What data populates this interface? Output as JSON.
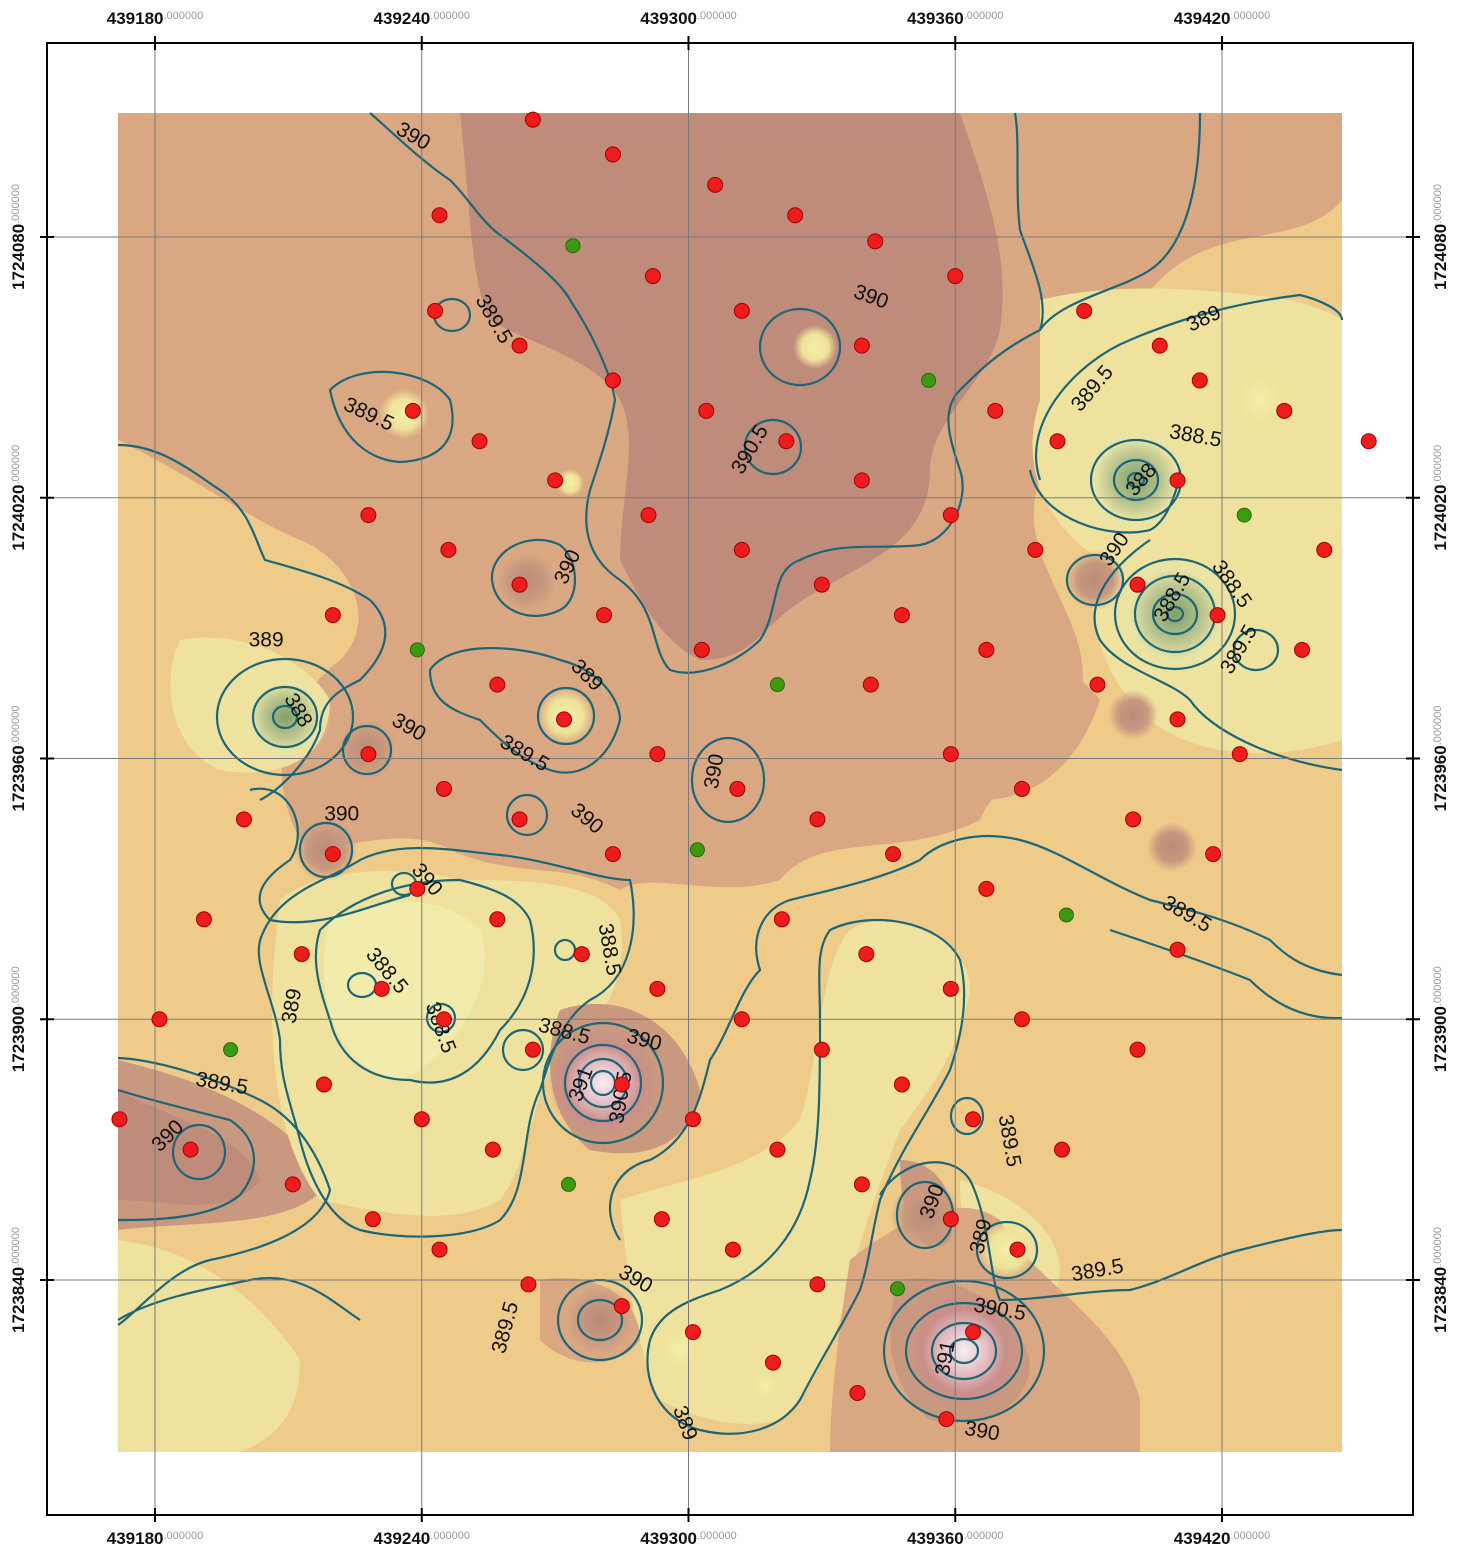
{
  "map": {
    "x_ticks": [
      {
        "main": "439180",
        "dec": ".000000",
        "value": 439180
      },
      {
        "main": "439240",
        "dec": ".000000",
        "value": 439240
      },
      {
        "main": "439300",
        "dec": ".000000",
        "value": 439300
      },
      {
        "main": "439360",
        "dec": ".000000",
        "value": 439360
      },
      {
        "main": "439420",
        "dec": ".000000",
        "value": 439420
      }
    ],
    "y_ticks": [
      {
        "main": "1724080",
        "dec": ".000000",
        "value": 1724080
      },
      {
        "main": "1724020",
        "dec": ".000000",
        "value": 1724020
      },
      {
        "main": "1723960",
        "dec": ".000000",
        "value": 1723960
      },
      {
        "main": "1723900",
        "dec": ".000000",
        "value": 1723900
      },
      {
        "main": "1723840",
        "dec": ".000000",
        "value": 1723840
      }
    ],
    "contour_labels": [
      {
        "text": "390",
        "x": 439238,
        "y": 1724103,
        "rot": 30
      },
      {
        "text": "389.5",
        "x": 439256,
        "y": 1724061,
        "rot": 60
      },
      {
        "text": "389.5",
        "x": 439228,
        "y": 1724039,
        "rot": 25
      },
      {
        "text": "390",
        "x": 439341,
        "y": 1724066,
        "rot": 20
      },
      {
        "text": "390.5",
        "x": 439314,
        "y": 1724031,
        "rot": -60
      },
      {
        "text": "389.5",
        "x": 439391,
        "y": 1724045,
        "rot": -50
      },
      {
        "text": "389",
        "x": 439416,
        "y": 1724061,
        "rot": -25
      },
      {
        "text": "388.5",
        "x": 439414,
        "y": 1724034,
        "rot": 10
      },
      {
        "text": "388",
        "x": 439402,
        "y": 1724024,
        "rot": -50
      },
      {
        "text": "390",
        "x": 439396,
        "y": 1724008,
        "rot": -55
      },
      {
        "text": "388.5",
        "x": 439409,
        "y": 1723997,
        "rot": -60
      },
      {
        "text": "388.5",
        "x": 439422,
        "y": 1724000,
        "rot": 55
      },
      {
        "text": "389.5",
        "x": 439424,
        "y": 1723985,
        "rot": -60
      },
      {
        "text": "390",
        "x": 439273,
        "y": 1724004,
        "rot": -65
      },
      {
        "text": "389",
        "x": 439205,
        "y": 1723987,
        "rot": 0
      },
      {
        "text": "388",
        "x": 439212,
        "y": 1723971,
        "rot": 60
      },
      {
        "text": "390",
        "x": 439237,
        "y": 1723967,
        "rot": 30
      },
      {
        "text": "389",
        "x": 439277,
        "y": 1723979,
        "rot": 45
      },
      {
        "text": "389.5",
        "x": 439263,
        "y": 1723961,
        "rot": 30
      },
      {
        "text": "390",
        "x": 439306,
        "y": 1723957,
        "rot": -80
      },
      {
        "text": "390",
        "x": 439277,
        "y": 1723946,
        "rot": 40
      },
      {
        "text": "390",
        "x": 439222,
        "y": 1723947,
        "rot": 0
      },
      {
        "text": "390",
        "x": 439241,
        "y": 1723932,
        "rot": 50
      },
      {
        "text": "389.5",
        "x": 439412,
        "y": 1723924,
        "rot": 30
      },
      {
        "text": "388.5",
        "x": 439282,
        "y": 1723916,
        "rot": 80
      },
      {
        "text": "388.5",
        "x": 439232,
        "y": 1723911,
        "rot": 50
      },
      {
        "text": "389",
        "x": 439211,
        "y": 1723903,
        "rot": -80
      },
      {
        "text": "388.5",
        "x": 439244,
        "y": 1723898,
        "rot": 70
      },
      {
        "text": "388.5",
        "x": 439272,
        "y": 1723897,
        "rot": 15
      },
      {
        "text": "390",
        "x": 439290,
        "y": 1723895,
        "rot": 15
      },
      {
        "text": "391",
        "x": 439276,
        "y": 1723885,
        "rot": -70
      },
      {
        "text": "390.5",
        "x": 439285,
        "y": 1723882,
        "rot": -80
      },
      {
        "text": "389.5",
        "x": 439195,
        "y": 1723885,
        "rot": 10
      },
      {
        "text": "390",
        "x": 439183,
        "y": 1723873,
        "rot": -45
      },
      {
        "text": "389.5",
        "x": 439372,
        "y": 1723872,
        "rot": 80
      },
      {
        "text": "390",
        "x": 439355,
        "y": 1723858,
        "rot": -70
      },
      {
        "text": "389",
        "x": 439366,
        "y": 1723850,
        "rot": -75
      },
      {
        "text": "389.5",
        "x": 439392,
        "y": 1723842,
        "rot": -10
      },
      {
        "text": "390.5",
        "x": 439370,
        "y": 1723833,
        "rot": 10
      },
      {
        "text": "391",
        "x": 439358,
        "y": 1723822,
        "rot": -80
      },
      {
        "text": "390",
        "x": 439366,
        "y": 1723805,
        "rot": 10
      },
      {
        "text": "389.5",
        "x": 439259,
        "y": 1723829,
        "rot": -75
      },
      {
        "text": "390",
        "x": 439288,
        "y": 1723840,
        "rot": 30
      },
      {
        "text": "389",
        "x": 439299,
        "y": 1723807,
        "rot": 70
      }
    ],
    "red_points": [
      [
        439265,
        1724107
      ],
      [
        439283,
        1724099
      ],
      [
        439306,
        1724092
      ],
      [
        439244,
        1724085
      ],
      [
        439324,
        1724085
      ],
      [
        439342,
        1724079
      ],
      [
        439292,
        1724071
      ],
      [
        439360,
        1724071
      ],
      [
        439243,
        1724063
      ],
      [
        439312,
        1724063
      ],
      [
        439389,
        1724063
      ],
      [
        439262,
        1724055
      ],
      [
        439339,
        1724055
      ],
      [
        439406,
        1724055
      ],
      [
        439283,
        1724047
      ],
      [
        439415,
        1724047
      ],
      [
        439238,
        1724040
      ],
      [
        439304,
        1724040
      ],
      [
        439369,
        1724040
      ],
      [
        439434,
        1724040
      ],
      [
        439253,
        1724033
      ],
      [
        439322,
        1724033
      ],
      [
        439383,
        1724033
      ],
      [
        439453,
        1724033
      ],
      [
        439270,
        1724024
      ],
      [
        439339,
        1724024
      ],
      [
        439410,
        1724024
      ],
      [
        439228,
        1724016
      ],
      [
        439291,
        1724016
      ],
      [
        439359,
        1724016
      ],
      [
        439246,
        1724008
      ],
      [
        439312,
        1724008
      ],
      [
        439378,
        1724008
      ],
      [
        439443,
        1724008
      ],
      [
        439262,
        1724000
      ],
      [
        439330,
        1724000
      ],
      [
        439401,
        1724000
      ],
      [
        439220,
        1723993
      ],
      [
        439281,
        1723993
      ],
      [
        439348,
        1723993
      ],
      [
        439419,
        1723993
      ],
      [
        439303,
        1723985
      ],
      [
        439367,
        1723985
      ],
      [
        439438,
        1723985
      ],
      [
        439257,
        1723977
      ],
      [
        439341,
        1723977
      ],
      [
        439392,
        1723977
      ],
      [
        439410,
        1723969
      ],
      [
        439272,
        1723969
      ],
      [
        439228,
        1723961
      ],
      [
        439293,
        1723961
      ],
      [
        439359,
        1723961
      ],
      [
        439424,
        1723961
      ],
      [
        439245,
        1723953
      ],
      [
        439311,
        1723953
      ],
      [
        439375,
        1723953
      ],
      [
        439200,
        1723946
      ],
      [
        439262,
        1723946
      ],
      [
        439329,
        1723946
      ],
      [
        439400,
        1723946
      ],
      [
        439220,
        1723938
      ],
      [
        439283,
        1723938
      ],
      [
        439346,
        1723938
      ],
      [
        439418,
        1723938
      ],
      [
        439239,
        1723930
      ],
      [
        439367,
        1723930
      ],
      [
        439191,
        1723923
      ],
      [
        439257,
        1723923
      ],
      [
        439321,
        1723923
      ],
      [
        439410,
        1723916
      ],
      [
        439213,
        1723915
      ],
      [
        439276,
        1723915
      ],
      [
        439340,
        1723915
      ],
      [
        439231,
        1723907
      ],
      [
        439293,
        1723907
      ],
      [
        439359,
        1723907
      ],
      [
        439181,
        1723900
      ],
      [
        439245,
        1723900
      ],
      [
        439312,
        1723900
      ],
      [
        439375,
        1723900
      ],
      [
        439265,
        1723893
      ],
      [
        439330,
        1723893
      ],
      [
        439401,
        1723893
      ],
      [
        439218,
        1723885
      ],
      [
        439285,
        1723885
      ],
      [
        439348,
        1723885
      ],
      [
        439172,
        1723877
      ],
      [
        439240,
        1723877
      ],
      [
        439301,
        1723877
      ],
      [
        439364,
        1723877
      ],
      [
        439188,
        1723870
      ],
      [
        439256,
        1723870
      ],
      [
        439320,
        1723870
      ],
      [
        439384,
        1723870
      ],
      [
        439211,
        1723862
      ],
      [
        439339,
        1723862
      ],
      [
        439229,
        1723854
      ],
      [
        439294,
        1723854
      ],
      [
        439359,
        1723854
      ],
      [
        439244,
        1723847
      ],
      [
        439310,
        1723847
      ],
      [
        439374,
        1723847
      ],
      [
        439264,
        1723839
      ],
      [
        439329,
        1723839
      ],
      [
        439285,
        1723834
      ],
      [
        439301,
        1723828
      ],
      [
        439364,
        1723828
      ],
      [
        439319,
        1723821
      ],
      [
        439338,
        1723814
      ],
      [
        439358,
        1723808
      ]
    ],
    "green_points": [
      [
        439274,
        1724078
      ],
      [
        439354,
        1724047
      ],
      [
        439425,
        1724016
      ],
      [
        439239,
        1723985
      ],
      [
        439320,
        1723977
      ],
      [
        439302,
        1723939
      ],
      [
        439385,
        1723924
      ],
      [
        439197,
        1723893
      ],
      [
        439273,
        1723862
      ],
      [
        439347,
        1723838
      ]
    ]
  }
}
